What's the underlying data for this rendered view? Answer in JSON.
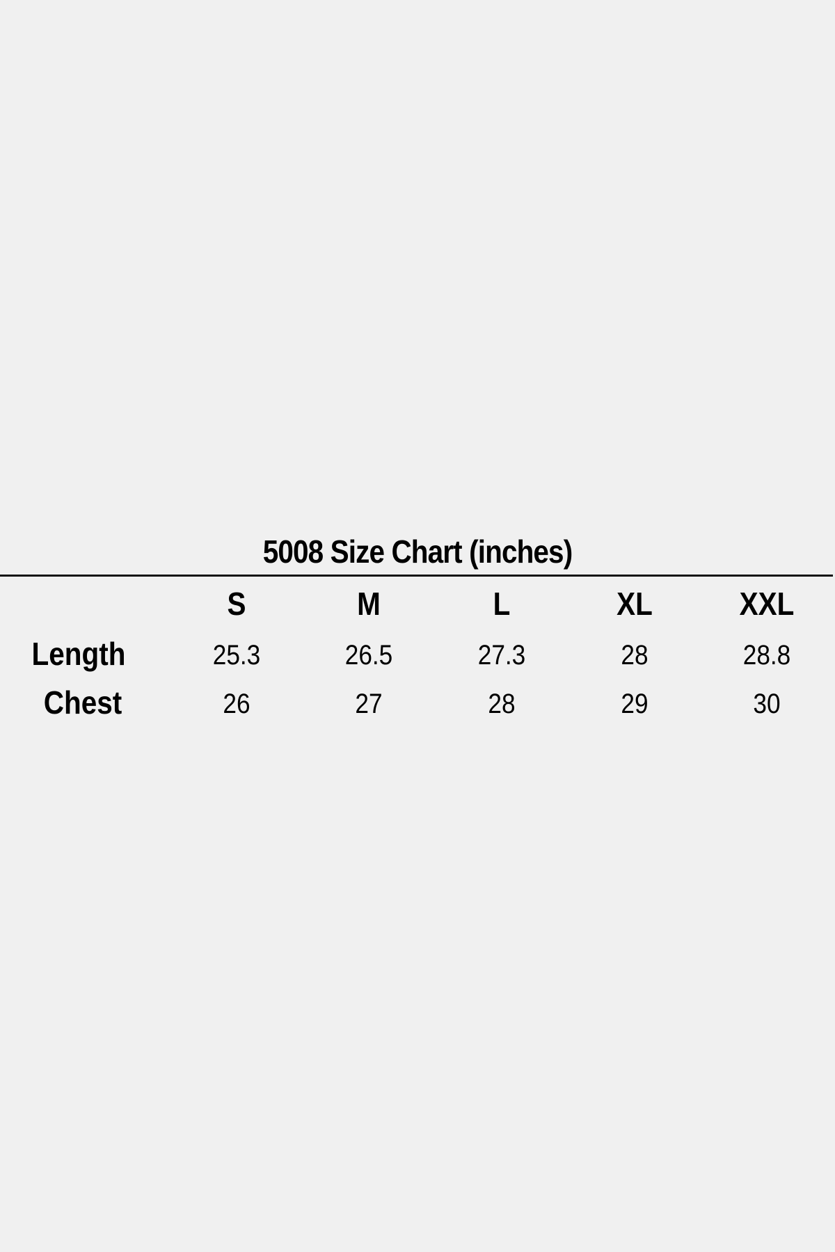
{
  "title": "5008 Size Chart (inches)",
  "sizes": [
    "S",
    "M",
    "L",
    "XL",
    "XXL"
  ],
  "rows": [
    {
      "label": "Length",
      "values": [
        "25.3",
        "26.5",
        "27.3",
        "28",
        "28.8"
      ]
    },
    {
      "label": "Chest",
      "values": [
        "26",
        "27",
        "28",
        "29",
        "30"
      ]
    }
  ]
}
